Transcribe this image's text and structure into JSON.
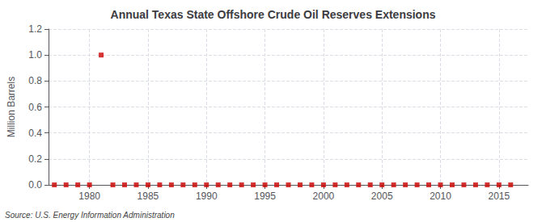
{
  "chart_data": {
    "type": "scatter",
    "title": "Annual Texas State Offshore Crude Oil Reserves Extensions",
    "ylabel": "Million Barrels",
    "annotations": [
      "Source: U.S. Energy Information Administration"
    ],
    "x": [
      1977,
      1978,
      1979,
      1980,
      1981,
      1982,
      1983,
      1984,
      1985,
      1986,
      1987,
      1988,
      1989,
      1990,
      1991,
      1992,
      1993,
      1994,
      1995,
      1996,
      1997,
      1998,
      1999,
      2000,
      2001,
      2002,
      2003,
      2004,
      2005,
      2006,
      2007,
      2008,
      2009,
      2010,
      2011,
      2012,
      2013,
      2014,
      2015,
      2016
    ],
    "values": [
      0.0,
      0.0,
      0.0,
      0.0,
      1.0,
      0.0,
      0.0,
      0.0,
      0.0,
      0.0,
      0.0,
      0.0,
      0.0,
      0.0,
      0.0,
      0.0,
      0.0,
      0.0,
      0.0,
      0.0,
      0.0,
      0.0,
      0.0,
      0.0,
      0.0,
      0.0,
      0.0,
      0.0,
      0.0,
      0.0,
      0.0,
      0.0,
      0.0,
      0.0,
      0.0,
      0.0,
      0.0,
      0.0,
      0.0,
      0.0
    ],
    "color": "#cc0000",
    "marker": "square",
    "xlim": [
      1976.5,
      2017.5
    ],
    "xticks": [
      1980,
      1985,
      1990,
      1995,
      2000,
      2005,
      2010,
      2015
    ],
    "ylim": [
      0,
      1.2
    ],
    "yticks": [
      {
        "value": 0,
        "label": "0.0"
      },
      0.2,
      0.4,
      0.6,
      0.8,
      {
        "value": 1,
        "label": "1.0"
      },
      1.2
    ],
    "grid": true
  }
}
